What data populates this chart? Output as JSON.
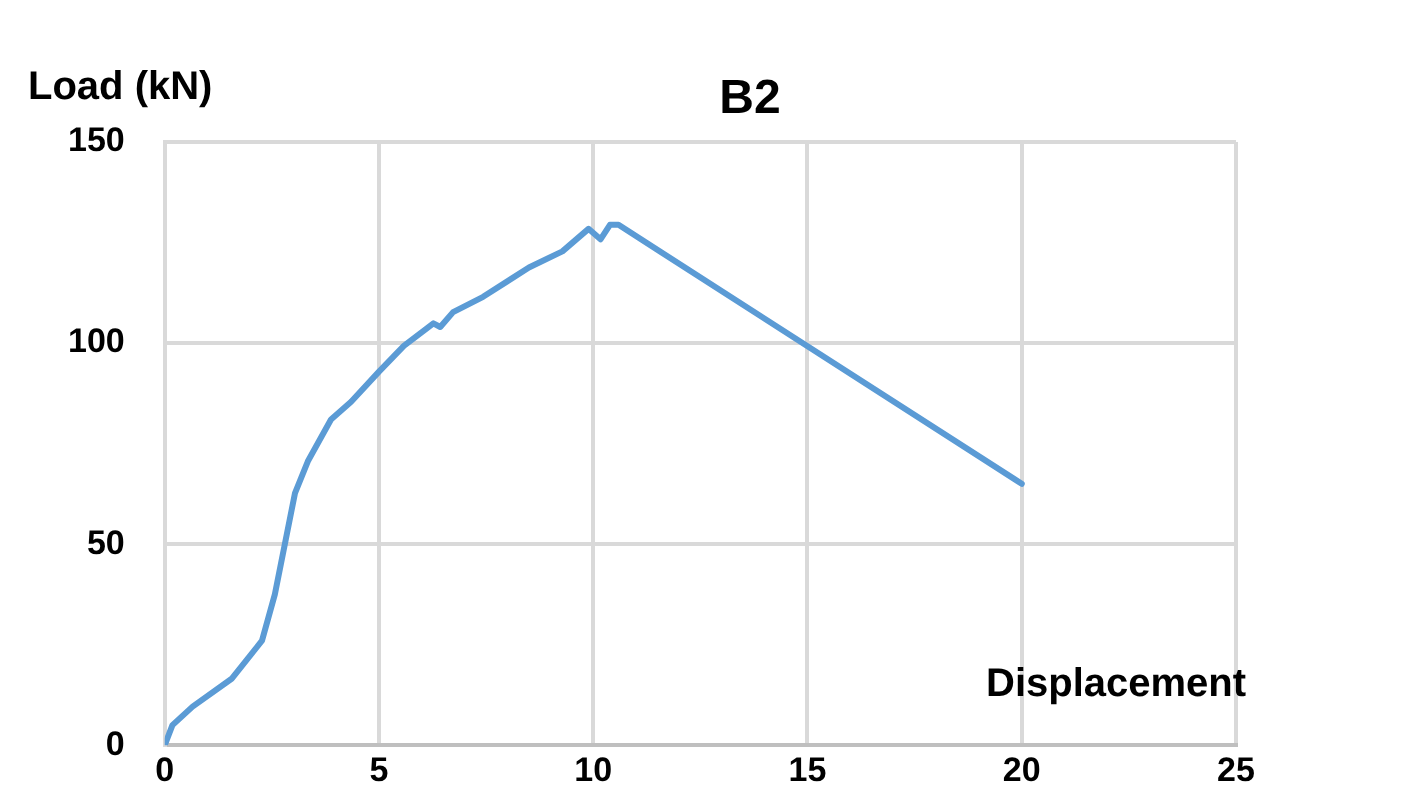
{
  "chart_data": {
    "type": "line",
    "title": "B2",
    "xlabel": "Displacement",
    "ylabel": "Load (kN)",
    "series": [
      {
        "color": "#5b9bd5",
        "x": [
          0,
          0.18,
          0.65,
          1.57,
          2.27,
          2.57,
          3.04,
          3.34,
          3.88,
          4.35,
          5.0,
          5.58,
          6.27,
          6.43,
          6.73,
          7.43,
          8.5,
          9.28,
          9.89,
          10.17,
          10.39,
          10.59,
          20
        ],
        "values": [
          0,
          5,
          9.6,
          16.6,
          26,
          37.5,
          62.7,
          70.6,
          81,
          85.4,
          92.9,
          99.3,
          104.9,
          104,
          107.7,
          111.5,
          118.8,
          122.8,
          128.4,
          125.8,
          129.4,
          129.4,
          65
        ]
      }
    ],
    "xlim": [
      0,
      25
    ],
    "xticks": [
      0,
      5,
      10,
      15,
      20,
      25
    ],
    "ylim": [
      0,
      150
    ],
    "yticks": [
      0,
      50,
      100,
      150
    ],
    "grid": true,
    "marker": "none",
    "line_style": "solid",
    "legend": false
  }
}
